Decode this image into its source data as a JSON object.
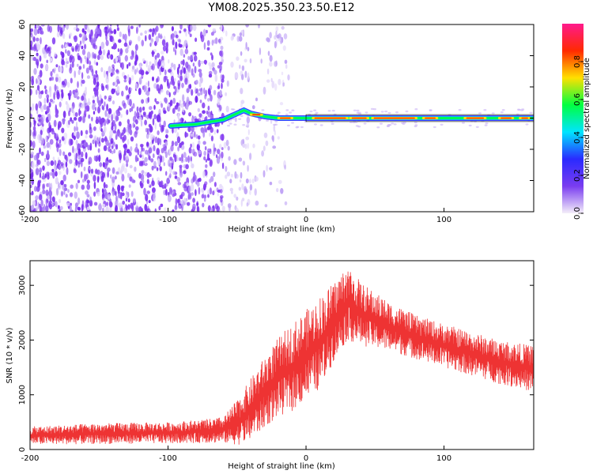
{
  "title": "YM08.2025.350.23.50.E12",
  "chart_data": [
    {
      "type": "heatmap",
      "name": "spectrogram",
      "title": "YM08.2025.350.23.50.E12",
      "xlabel": "Height of straight line (km)",
      "ylabel": "Frequency (Hz)",
      "xlim": [
        -200,
        165
      ],
      "ylim": [
        -60,
        60
      ],
      "xticks": [
        -200,
        -100,
        0,
        100
      ],
      "yticks": [
        -60,
        -40,
        -20,
        0,
        20,
        40,
        60
      ],
      "signal_track": [
        {
          "x": -98,
          "freq": -5
        },
        {
          "x": -90,
          "freq": -4.5
        },
        {
          "x": -80,
          "freq": -4
        },
        {
          "x": -70,
          "freq": -2.5
        },
        {
          "x": -60,
          "freq": -1
        },
        {
          "x": -55,
          "freq": 1
        },
        {
          "x": -50,
          "freq": 3
        },
        {
          "x": -45,
          "freq": 5
        },
        {
          "x": -40,
          "freq": 3
        },
        {
          "x": -30,
          "freq": 1
        },
        {
          "x": -20,
          "freq": 0
        },
        {
          "x": 0,
          "freq": 0
        },
        {
          "x": 50,
          "freq": 0
        },
        {
          "x": 100,
          "freq": 0
        },
        {
          "x": 165,
          "freq": 0
        }
      ],
      "colorbar": {
        "label": "Normalized spectral amplitude",
        "ticks": [
          0.0,
          0.2,
          0.4,
          0.6,
          0.8
        ],
        "tick_labels": [
          "0.0",
          "0.2",
          "0.4",
          "0.6",
          "0.8"
        ],
        "range": [
          0,
          1
        ],
        "colors": [
          "#f4eef9",
          "#7a3df0",
          "#2a2aff",
          "#00e5ff",
          "#00ff40",
          "#ffe000",
          "#ff2a00",
          "#ff1a8c"
        ]
      }
    },
    {
      "type": "line",
      "name": "snr",
      "xlabel": "Height of straight line (km)",
      "ylabel": "SNR (10 * v/v)",
      "xlim": [
        -200,
        165
      ],
      "ylim": [
        0,
        3450
      ],
      "xticks": [
        -200,
        -100,
        0,
        100
      ],
      "yticks": [
        0,
        1000,
        2000,
        3000
      ],
      "color": "#ee3333",
      "envelope": {
        "x": [
          -200,
          -150,
          -100,
          -70,
          -60,
          -50,
          -40,
          -30,
          -20,
          -10,
          0,
          10,
          20,
          30,
          40,
          60,
          80,
          100,
          120,
          140,
          165
        ],
        "lower": [
          90,
          100,
          110,
          120,
          120,
          80,
          150,
          400,
          600,
          700,
          900,
          1100,
          1600,
          2000,
          1900,
          1800,
          1650,
          1500,
          1350,
          1200,
          1050
        ],
        "upper": [
          420,
          480,
          500,
          560,
          600,
          900,
          1300,
          1700,
          2050,
          2300,
          2550,
          2800,
          3050,
          3380,
          3050,
          2700,
          2450,
          2300,
          2150,
          2000,
          1900
        ]
      }
    }
  ]
}
